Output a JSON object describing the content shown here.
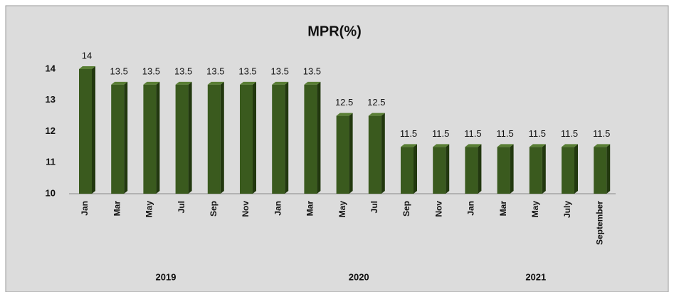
{
  "chart_data": {
    "type": "bar",
    "title": "MPR(%)",
    "categories": [
      "Jan",
      "Mar",
      "May",
      "Jul",
      "Sep",
      "Nov",
      "Jan",
      "Mar",
      "May",
      "Jul",
      "Sep",
      "Nov",
      "Jan",
      "Mar",
      "May",
      "July",
      "September"
    ],
    "values": [
      14,
      13.5,
      13.5,
      13.5,
      13.5,
      13.5,
      13.5,
      13.5,
      12.5,
      12.5,
      11.5,
      11.5,
      11.5,
      11.5,
      11.5,
      11.5,
      11.5
    ],
    "groups": [
      {
        "label": "2019",
        "count": 6
      },
      {
        "label": "2020",
        "count": 6
      },
      {
        "label": "2021",
        "count": 5
      }
    ],
    "color": "#3a5a1e",
    "ylim": [
      10,
      14
    ],
    "yticks": [
      10,
      11,
      12,
      13,
      14
    ],
    "grid": false
  }
}
